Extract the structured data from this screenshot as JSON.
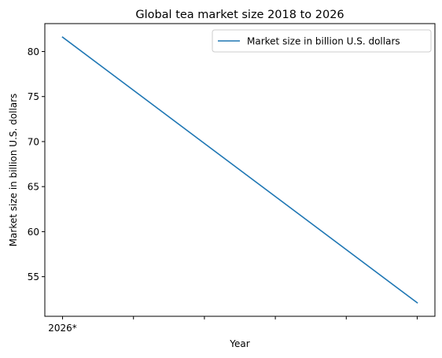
{
  "chart_data": {
    "type": "line",
    "title": "Global tea market size 2018 to 2026",
    "xlabel": "Year",
    "ylabel": "Market size in billion U.S. dollars",
    "x_tick_labels": [
      "2026*",
      "",
      "",
      "",
      "",
      ""
    ],
    "series": [
      {
        "name": "Market size in billion U.S. dollars",
        "color": "#1f77b4",
        "x": [
          0,
          5
        ],
        "values": [
          81.6,
          52.1
        ]
      }
    ],
    "xlim": [
      -0.25,
      5.25
    ],
    "ylim": [
      50.6,
      83.1
    ],
    "yticks": [
      55,
      60,
      65,
      70,
      75,
      80
    ],
    "grid": false,
    "legend_position": "top-right"
  }
}
